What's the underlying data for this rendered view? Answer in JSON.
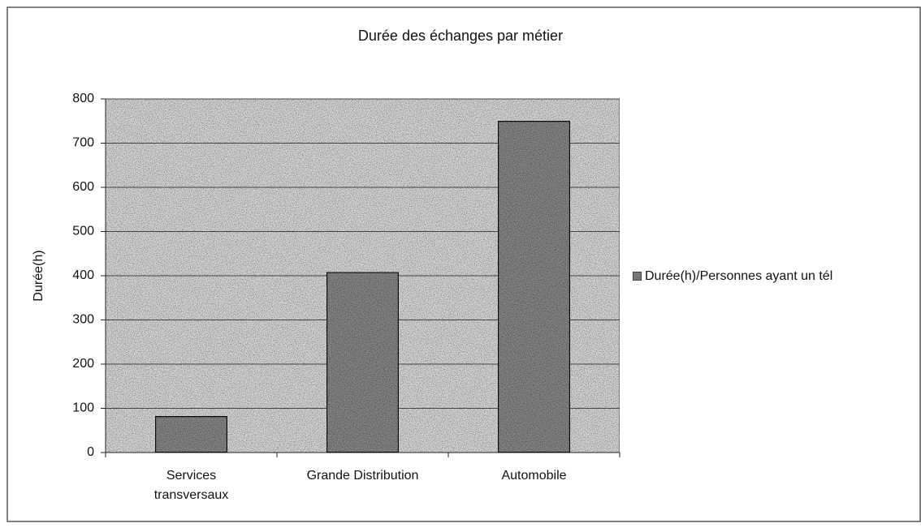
{
  "chart_data": {
    "type": "bar",
    "title": "Durée des échanges par métier",
    "y_label": "Durée(h)",
    "categories": [
      "Services transversaux",
      "Grande Distribution",
      "Automobile"
    ],
    "series": [
      {
        "name": "Durée(h)/Personnes ayant un tél",
        "color": "#8a8a8a",
        "values": [
          82,
          408,
          750
        ]
      }
    ],
    "ylim": [
      0,
      800
    ],
    "yticks": [
      0,
      100,
      200,
      300,
      400,
      500,
      600,
      700,
      800
    ],
    "grid": true,
    "legend": "right"
  }
}
